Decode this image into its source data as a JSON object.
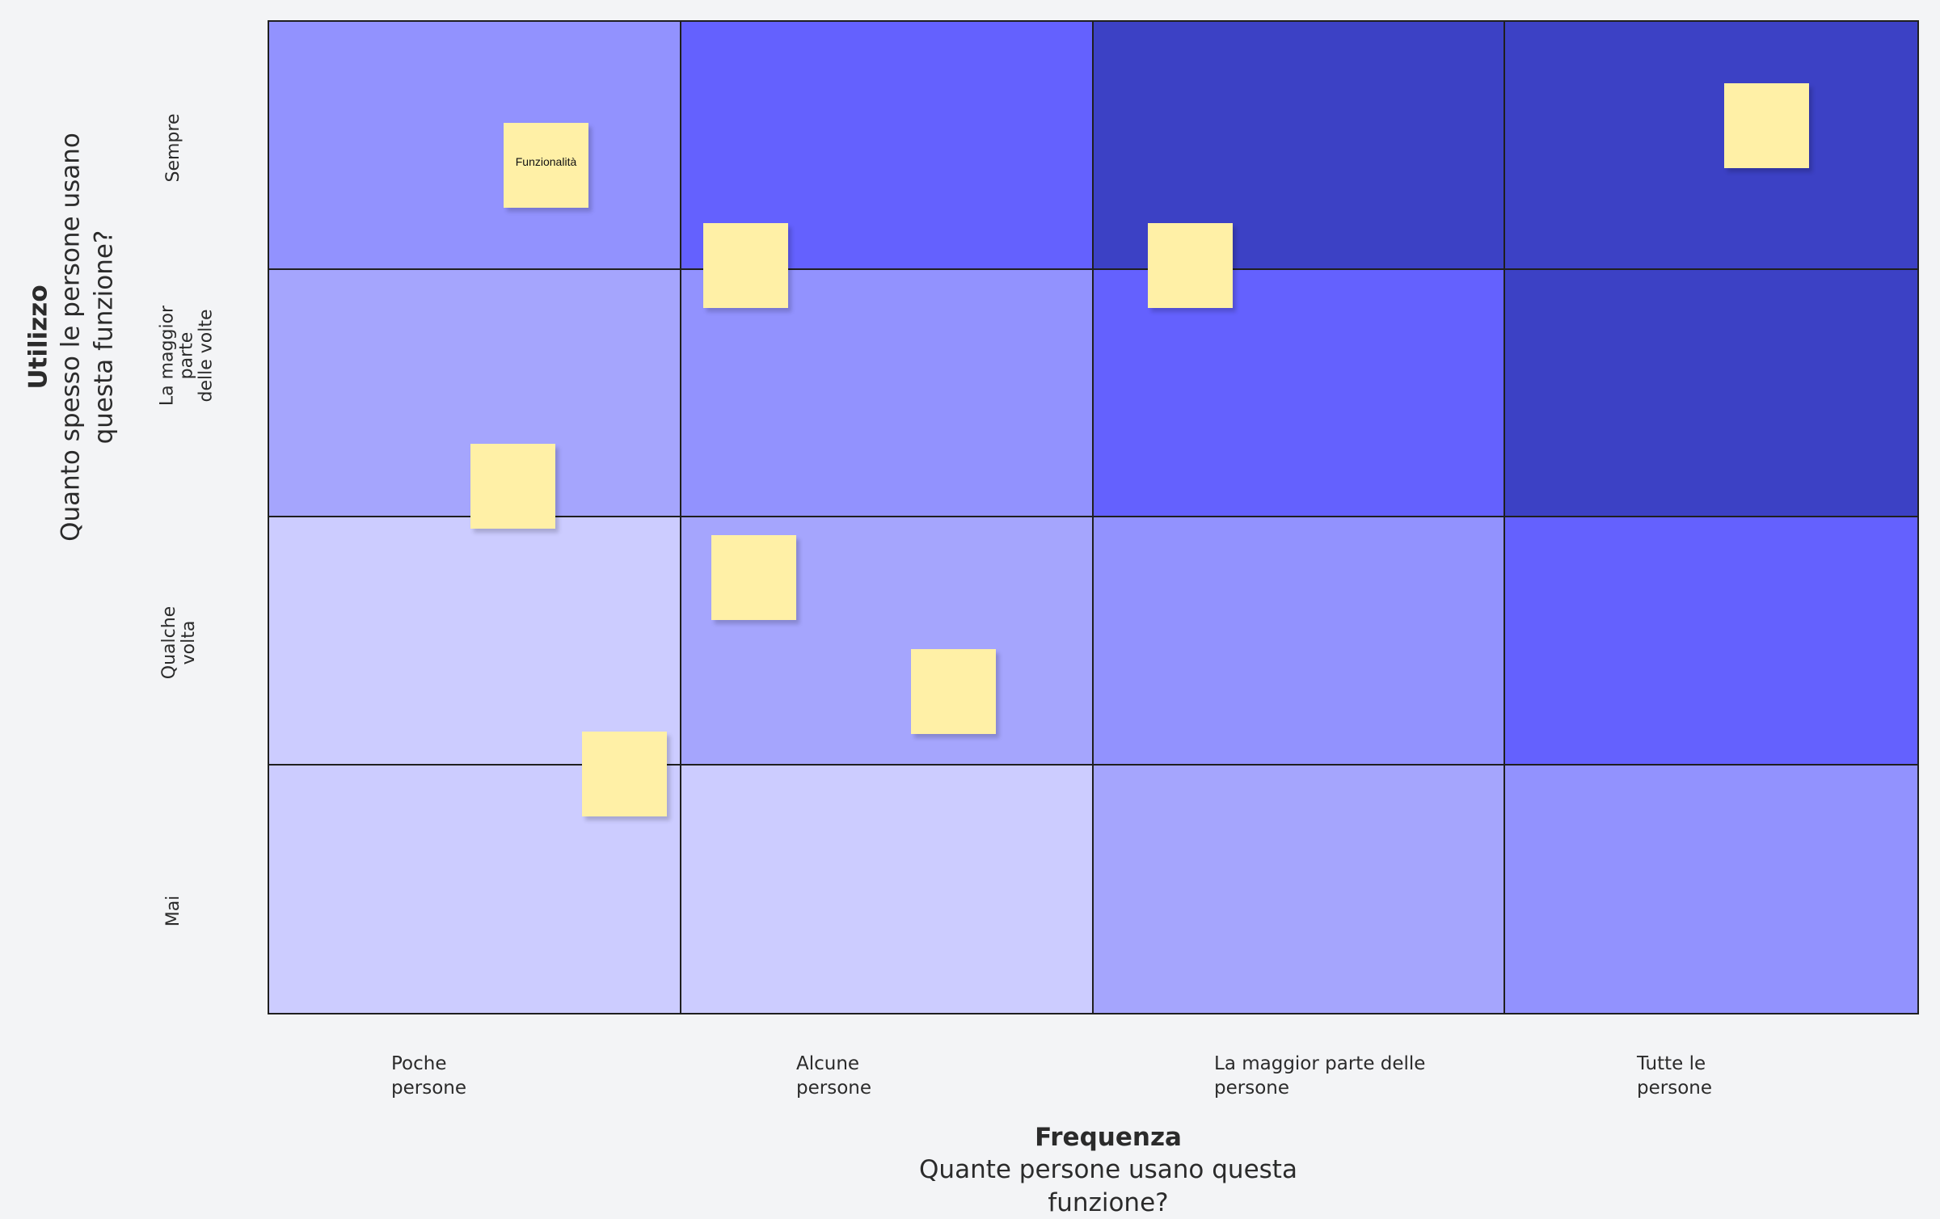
{
  "y_axis": {
    "title": "Utilizzo",
    "subtitle": "Quanto spesso le persone usano questa funzione?",
    "levels": [
      "Sempre",
      "La maggior\nparte\ndelle volte",
      "Qualche\nvolta",
      "Mai"
    ]
  },
  "x_axis": {
    "title": "Frequenza",
    "subtitle": "Quante persone usano questa funzione?",
    "levels": [
      "Poche\npersone",
      "Alcune\npersone",
      "La maggior parte delle\npersone",
      "Tutte le\npersone"
    ]
  },
  "colors": {
    "background": "#f3f4f6",
    "level_1": "#ccccff",
    "level_2": "#a5a5fd",
    "level_3": "#9292fe",
    "level_4": "#6461fe",
    "level_5": "#3c41c5",
    "sticky_note": "#fff0a6"
  },
  "grid_cells": [
    [
      "level_3",
      "level_4",
      "level_5",
      "level_5"
    ],
    [
      "level_2",
      "level_3",
      "level_4",
      "level_5"
    ],
    [
      "level_1",
      "level_2",
      "level_3",
      "level_4"
    ],
    [
      "level_1",
      "level_1",
      "level_2",
      "level_3"
    ]
  ],
  "sticky_notes": [
    {
      "label": "Funzionalità"
    },
    {
      "label": ""
    },
    {
      "label": ""
    },
    {
      "label": ""
    },
    {
      "label": ""
    },
    {
      "label": ""
    },
    {
      "label": ""
    },
    {
      "label": ""
    }
  ]
}
